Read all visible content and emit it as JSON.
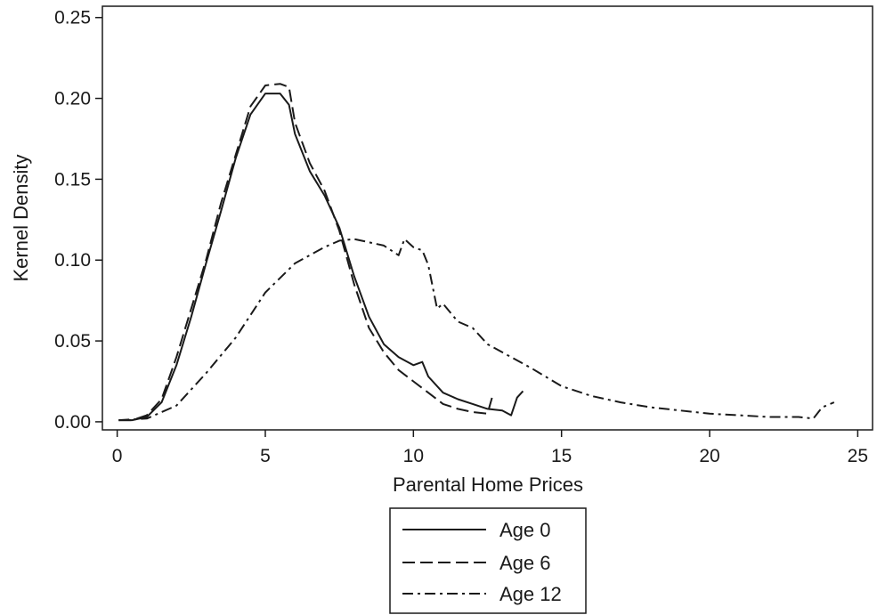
{
  "chart_data": {
    "type": "line",
    "title": "",
    "xlabel": "Parental Home Prices",
    "ylabel": "Kernel Density",
    "xlim": [
      -0.5,
      25.5
    ],
    "ylim": [
      -0.005,
      0.257
    ],
    "xticks": [
      0,
      5,
      10,
      15,
      20,
      25
    ],
    "xtick_labels": [
      "0",
      "5",
      "10",
      "15",
      "20",
      "25"
    ],
    "yticks": [
      0,
      0.05,
      0.1,
      0.15,
      0.2,
      0.25
    ],
    "ytick_labels": [
      "0.00",
      "0.05",
      "0.10",
      "0.15",
      "0.20",
      "0.25"
    ],
    "grid": false,
    "legend_position": "bottom",
    "series": [
      {
        "name": "Age 0",
        "style": "solid",
        "x": [
          0.05,
          0.5,
          1.0,
          1.5,
          2.0,
          2.5,
          3.0,
          3.5,
          4.0,
          4.5,
          5.0,
          5.5,
          5.8,
          6.0,
          6.5,
          7.0,
          7.5,
          8.0,
          8.5,
          9.0,
          9.5,
          10.0,
          10.3,
          10.5,
          11.0,
          11.5,
          12.0,
          12.5,
          13.0,
          13.3,
          13.5,
          13.7
        ],
        "y": [
          0.001,
          0.001,
          0.003,
          0.012,
          0.035,
          0.065,
          0.098,
          0.13,
          0.163,
          0.19,
          0.203,
          0.203,
          0.196,
          0.178,
          0.155,
          0.14,
          0.12,
          0.09,
          0.065,
          0.048,
          0.04,
          0.035,
          0.037,
          0.028,
          0.018,
          0.014,
          0.011,
          0.008,
          0.007,
          0.004,
          0.015,
          0.019
        ]
      },
      {
        "name": "Age 6",
        "style": "dashed",
        "x": [
          0.05,
          0.5,
          1.0,
          1.5,
          2.0,
          2.5,
          3.0,
          3.5,
          4.0,
          4.5,
          5.0,
          5.5,
          5.8,
          6.0,
          6.5,
          7.0,
          7.5,
          8.0,
          8.5,
          9.0,
          9.5,
          10.0,
          10.5,
          11.0,
          11.5,
          12.0,
          12.5,
          12.7
        ],
        "y": [
          0.001,
          0.001,
          0.004,
          0.014,
          0.04,
          0.07,
          0.1,
          0.135,
          0.165,
          0.195,
          0.208,
          0.209,
          0.207,
          0.185,
          0.16,
          0.143,
          0.118,
          0.085,
          0.058,
          0.043,
          0.032,
          0.025,
          0.018,
          0.011,
          0.008,
          0.006,
          0.005,
          0.018
        ]
      },
      {
        "name": "Age 12",
        "style": "dash-dot",
        "x": [
          0.05,
          1.0,
          2.0,
          3.0,
          4.0,
          5.0,
          6.0,
          7.0,
          7.5,
          8.0,
          9.0,
          9.5,
          9.7,
          10.0,
          10.3,
          10.5,
          10.8,
          11.0,
          11.5,
          12.0,
          12.5,
          13.0,
          14.0,
          15.0,
          16.0,
          17.0,
          18.0,
          19.0,
          20.0,
          21.0,
          22.0,
          23.0,
          23.5,
          23.8,
          24.2
        ],
        "y": [
          0.001,
          0.002,
          0.01,
          0.03,
          0.052,
          0.08,
          0.098,
          0.108,
          0.112,
          0.113,
          0.109,
          0.103,
          0.113,
          0.108,
          0.106,
          0.097,
          0.07,
          0.073,
          0.062,
          0.058,
          0.048,
          0.043,
          0.033,
          0.022,
          0.016,
          0.012,
          0.009,
          0.007,
          0.005,
          0.004,
          0.003,
          0.003,
          0.002,
          0.009,
          0.012
        ]
      }
    ]
  }
}
